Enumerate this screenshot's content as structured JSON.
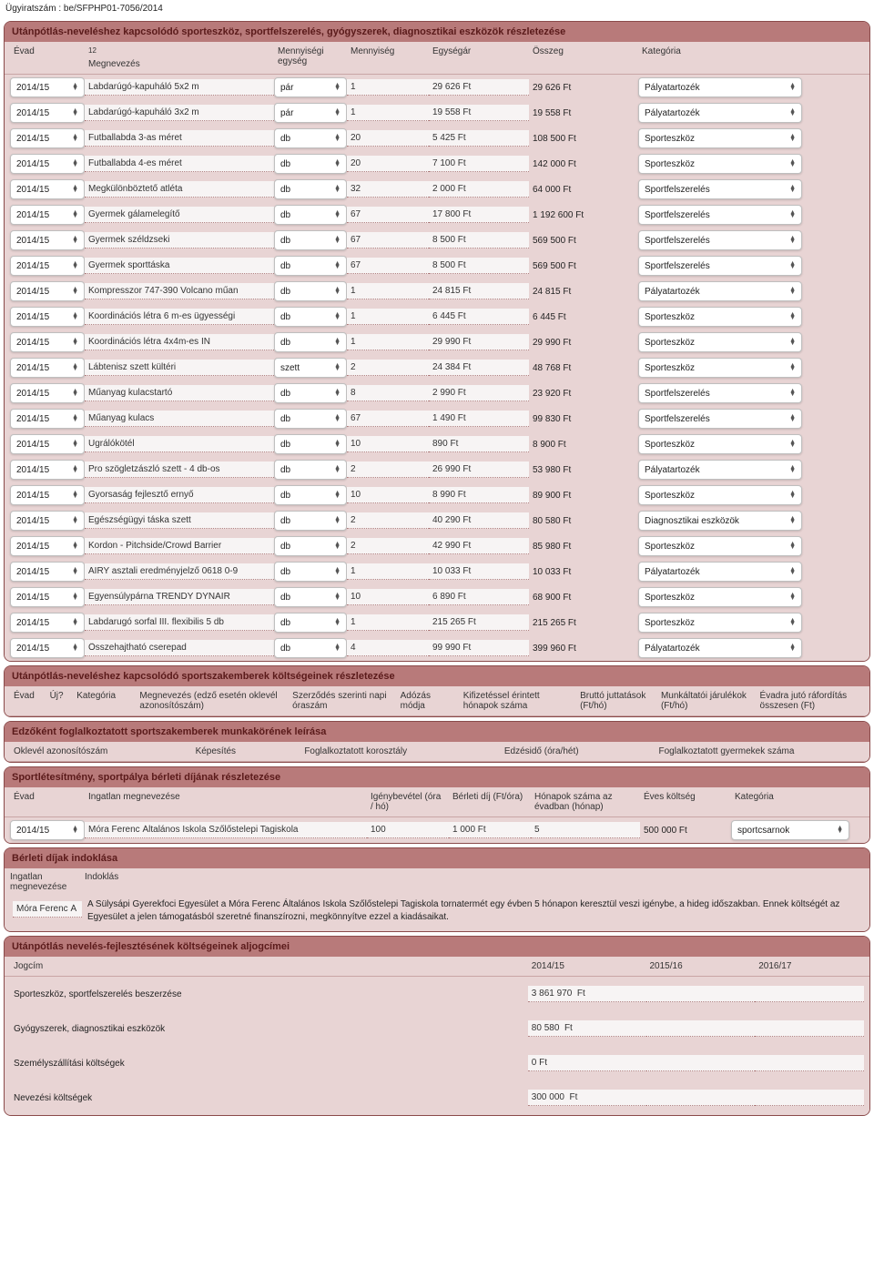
{
  "doc_id": "Ügyiratszám : be/SFPHP01-7056/2014",
  "equipment": {
    "title": "Utánpótlás-neveléshez kapcsolódó sporteszköz, sportfelszerelés, gyógyszerek, diagnosztikai eszközök részletezése",
    "headers": {
      "evad": "Évad",
      "meg_sup": "12",
      "meg": "Megnevezés",
      "unit": "Mennyiségi egység",
      "qty": "Mennyiség",
      "price": "Egységár",
      "sum": "Összeg",
      "cat": "Kategória"
    },
    "rows": [
      {
        "evad": "2014/15",
        "meg": "Labdarúgó-kapuháló 5x2 m",
        "unit": "pár",
        "qty": "1",
        "price": "29 626 Ft",
        "sum": "29 626  Ft",
        "cat": "Pályatartozék"
      },
      {
        "evad": "2014/15",
        "meg": "Labdarúgó-kapuháló 3x2 m",
        "unit": "pár",
        "qty": "1",
        "price": "19 558 Ft",
        "sum": "19 558  Ft",
        "cat": "Pályatartozék"
      },
      {
        "evad": "2014/15",
        "meg": "Futballabda 3-as méret",
        "unit": "db",
        "qty": "20",
        "price": "5 425 Ft",
        "sum": "108 500  Ft",
        "cat": "Sporteszköz"
      },
      {
        "evad": "2014/15",
        "meg": "Futballabda 4-es méret",
        "unit": "db",
        "qty": "20",
        "price": "7 100 Ft",
        "sum": "142 000  Ft",
        "cat": "Sporteszköz"
      },
      {
        "evad": "2014/15",
        "meg": "Megkülönböztető atléta",
        "unit": "db",
        "qty": "32",
        "price": "2 000 Ft",
        "sum": "64 000  Ft",
        "cat": "Sportfelszerelés"
      },
      {
        "evad": "2014/15",
        "meg": "Gyermek gálamelegítő",
        "unit": "db",
        "qty": "67",
        "price": "17 800 Ft",
        "sum": "1 192 600  Ft",
        "cat": "Sportfelszerelés"
      },
      {
        "evad": "2014/15",
        "meg": "Gyermek széldzseki",
        "unit": "db",
        "qty": "67",
        "price": "8 500 Ft",
        "sum": "569 500  Ft",
        "cat": "Sportfelszerelés"
      },
      {
        "evad": "2014/15",
        "meg": "Gyermek sporttáska",
        "unit": "db",
        "qty": "67",
        "price": "8 500 Ft",
        "sum": "569 500  Ft",
        "cat": "Sportfelszerelés"
      },
      {
        "evad": "2014/15",
        "meg": "Kompresszor 747-390 Volcano műan",
        "unit": "db",
        "qty": "1",
        "price": "24 815 Ft",
        "sum": "24 815  Ft",
        "cat": "Pályatartozék"
      },
      {
        "evad": "2014/15",
        "meg": "Koordinációs létra 6 m-es ügyességi",
        "unit": "db",
        "qty": "1",
        "price": "6 445 Ft",
        "sum": "6 445  Ft",
        "cat": "Sporteszköz"
      },
      {
        "evad": "2014/15",
        "meg": "Koordinációs létra 4x4m-es IN",
        "unit": "db",
        "qty": "1",
        "price": "29 990 Ft",
        "sum": "29 990  Ft",
        "cat": "Sporteszköz"
      },
      {
        "evad": "2014/15",
        "meg": "Lábtenisz szett kültéri",
        "unit": "szett",
        "qty": "2",
        "price": "24 384 Ft",
        "sum": "48 768  Ft",
        "cat": "Sporteszköz"
      },
      {
        "evad": "2014/15",
        "meg": "Műanyag kulacstartó",
        "unit": "db",
        "qty": "8",
        "price": "2 990 Ft",
        "sum": "23 920  Ft",
        "cat": "Sportfelszerelés"
      },
      {
        "evad": "2014/15",
        "meg": "Műanyag kulacs",
        "unit": "db",
        "qty": "67",
        "price": "1 490 Ft",
        "sum": "99 830  Ft",
        "cat": "Sportfelszerelés"
      },
      {
        "evad": "2014/15",
        "meg": "Ugrálókötél",
        "unit": "db",
        "qty": "10",
        "price": "890 Ft",
        "sum": "8 900  Ft",
        "cat": "Sporteszköz"
      },
      {
        "evad": "2014/15",
        "meg": "Pro szögletzászló szett - 4 db-os",
        "unit": "db",
        "qty": "2",
        "price": "26 990 Ft",
        "sum": "53 980  Ft",
        "cat": "Pályatartozék"
      },
      {
        "evad": "2014/15",
        "meg": "Gyorsaság fejlesztő ernyő",
        "unit": "db",
        "qty": "10",
        "price": "8 990 Ft",
        "sum": "89 900  Ft",
        "cat": "Sporteszköz"
      },
      {
        "evad": "2014/15",
        "meg": "Egészségügyi táska szett",
        "unit": "db",
        "qty": "2",
        "price": "40 290 Ft",
        "sum": "80 580  Ft",
        "cat": "Diagnosztikai eszközök"
      },
      {
        "evad": "2014/15",
        "meg": "Kordon - Pitchside/Crowd Barrier",
        "unit": "db",
        "qty": "2",
        "price": "42 990 Ft",
        "sum": "85 980  Ft",
        "cat": "Sporteszköz"
      },
      {
        "evad": "2014/15",
        "meg": "AIRY asztali eredményjelző 0618 0-9",
        "unit": "db",
        "qty": "1",
        "price": "10 033 Ft",
        "sum": "10 033  Ft",
        "cat": "Pályatartozék"
      },
      {
        "evad": "2014/15",
        "meg": "Egyensúlypárna TRENDY DYNAIR",
        "unit": "db",
        "qty": "10",
        "price": "6 890 Ft",
        "sum": "68 900  Ft",
        "cat": "Sporteszköz"
      },
      {
        "evad": "2014/15",
        "meg": "Labdarugó sorfal III. flexibilis 5 db",
        "unit": "db",
        "qty": "1",
        "price": "215 265 Ft",
        "sum": "215 265  Ft",
        "cat": "Sporteszköz"
      },
      {
        "evad": "2014/15",
        "meg": "Összehajtható cserepad",
        "unit": "db",
        "qty": "4",
        "price": "99 990 Ft",
        "sum": "399 960  Ft",
        "cat": "Pályatartozék"
      }
    ]
  },
  "szakemberek": {
    "title": "Utánpótlás-neveléshez kapcsolódó sportszakemberek költségeinek részletezése",
    "headers": [
      "Évad",
      "Új?",
      "Kategória",
      "Megnevezés (edző esetén oklevél azonosítószám)",
      "Szerződés szerinti napi óraszám",
      "Adózás módja",
      "Kifizetéssel érintett hónapok száma",
      "Bruttó juttatások (Ft/hó)",
      "Munkáltatói járulékok (Ft/hó)",
      "Évadra jutó ráfordítás összesen (Ft)"
    ]
  },
  "edzokent": {
    "title": "Edzőként foglalkoztatott sportszakemberek munkakörének leírása",
    "headers": [
      "Oklevél azonosítószám",
      "Képesítés",
      "Foglalkoztatott korosztály",
      "Edzésidő (óra/hét)",
      "Foglalkoztatott gyermekek száma"
    ]
  },
  "berlet": {
    "title": "Sportlétesítmény, sportpálya bérleti díjának részletezése",
    "headers": {
      "evad": "Évad",
      "ing": "Ingatlan megnevezése",
      "igeny": "Igénybevétel (óra / hó)",
      "dij": "Bérleti díj (Ft/óra)",
      "honap": "Hónapok száma az évadban (hónap)",
      "eves": "Éves költség",
      "cat": "Kategória"
    },
    "row": {
      "evad": "2014/15",
      "ing": "Móra Ferenc Általános Iskola Szőlőstelepi Tagiskola",
      "igeny": "100",
      "dij": "1 000 Ft",
      "honap": "5",
      "eves": "500 000 Ft",
      "cat": "sportcsarnok"
    }
  },
  "indoklas": {
    "title": "Bérleti díjak indoklása",
    "hdr_ing": "Ingatlan megnevezése",
    "hdr_ind": "Indoklás",
    "ing": "Móra Ferenc Á",
    "text": "A Sülysápi Gyerekfoci Egyesület a Móra Ferenc Általános Iskola Szőlőstelepi Tagiskola tornatermét egy évben 5 hónapon keresztül veszi igénybe, a hideg időszakban. Ennek költségét az Egyesület a jelen támogatásból szeretné finanszírozni, megkönnyítve ezzel a kiadásaikat."
  },
  "aljogcim": {
    "title": "Utánpótlás nevelés-fejlesztésének költségeinek aljogcímei",
    "headers": {
      "jog": "Jogcím",
      "y1": "2014/15",
      "y2": "2015/16",
      "y3": "2016/17"
    },
    "rows": [
      {
        "jog": "Sporteszköz, sportfelszerelés beszerzése",
        "y1": "3 861 970  Ft",
        "y2": "",
        "y3": ""
      },
      {
        "jog": "Gyógyszerek, diagnosztikai eszközök",
        "y1": "80 580  Ft",
        "y2": "",
        "y3": ""
      },
      {
        "jog": "Személyszállítási költségek",
        "y1": "0 Ft",
        "y2": "",
        "y3": ""
      },
      {
        "jog": "Nevezési költségek",
        "y1": "300 000  Ft",
        "y2": "",
        "y3": ""
      }
    ]
  }
}
